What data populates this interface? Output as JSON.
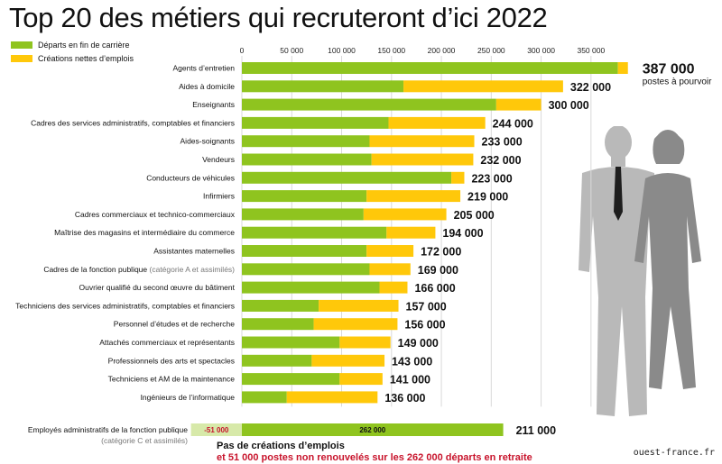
{
  "title": "Top 20 des métiers qui recruteront d’ici 2022",
  "legend": [
    {
      "label": "Départs en fin de carrière",
      "color": "#8fc41f"
    },
    {
      "label": "Créations nettes d’emplois",
      "color": "#ffc80a"
    }
  ],
  "chart_data": {
    "type": "bar",
    "orientation": "horizontal",
    "stacked": true,
    "xlim": [
      0,
      380000
    ],
    "ticks": [
      {
        "value": 0,
        "label": "0"
      },
      {
        "value": 50000,
        "label": "50 000"
      },
      {
        "value": 100000,
        "label": "100 000"
      },
      {
        "value": 150000,
        "label": "150 000"
      },
      {
        "value": 200000,
        "label": "200 000"
      },
      {
        "value": 250000,
        "label": "250 000"
      },
      {
        "value": 300000,
        "label": "300 000"
      },
      {
        "value": 350000,
        "label": "350 000"
      }
    ],
    "grid": true,
    "categories": [
      {
        "label": "Agents d’entretien",
        "departs": 377000,
        "creations": 10000,
        "total": "387 000"
      },
      {
        "label": "Aides à domicile",
        "departs": 162000,
        "creations": 160000,
        "total": "322 000"
      },
      {
        "label": "Enseignants",
        "departs": 255000,
        "creations": 45000,
        "total": "300 000"
      },
      {
        "label": "Cadres des services administratifs, comptables et financiers",
        "departs": 147000,
        "creations": 97000,
        "total": "244 000"
      },
      {
        "label": "Aides-soignants",
        "departs": 128000,
        "creations": 105000,
        "total": "233 000"
      },
      {
        "label": "Vendeurs",
        "departs": 130000,
        "creations": 102000,
        "total": "232 000"
      },
      {
        "label": "Conducteurs de véhicules",
        "departs": 210000,
        "creations": 13000,
        "total": "223 000"
      },
      {
        "label": "Infirmiers",
        "departs": 125000,
        "creations": 94000,
        "total": "219 000"
      },
      {
        "label": "Cadres commerciaux et technico-commerciaux",
        "departs": 122000,
        "creations": 83000,
        "total": "205 000"
      },
      {
        "label": "Maîtrise des magasins et intermédiaire du commerce",
        "departs": 145000,
        "creations": 49000,
        "total": "194 000"
      },
      {
        "label": "Assistantes maternelles",
        "departs": 125000,
        "creations": 47000,
        "total": "172 000"
      },
      {
        "label": "Cadres de la fonction publique",
        "note": "(catégorie A et assimilés)",
        "departs": 128000,
        "creations": 41000,
        "total": "169 000"
      },
      {
        "label": "Ouvrier qualifié du second œuvre du bâtiment",
        "departs": 138000,
        "creations": 28000,
        "total": "166 000"
      },
      {
        "label": "Techniciens des services administratifs, comptables et financiers",
        "departs": 77000,
        "creations": 80000,
        "total": "157 000"
      },
      {
        "label": "Personnel d’études et de recherche",
        "departs": 72000,
        "creations": 84000,
        "total": "156 000"
      },
      {
        "label": "Attachés commerciaux et représentants",
        "departs": 98000,
        "creations": 51000,
        "total": "149 000"
      },
      {
        "label": "Professionnels des arts et spectacles",
        "departs": 70000,
        "creations": 73000,
        "total": "143 000"
      },
      {
        "label": "Techniciens et AM de la maintenance",
        "departs": 98000,
        "creations": 43000,
        "total": "141 000"
      },
      {
        "label": "Ingénieurs de l’informatique",
        "departs": 45000,
        "creations": 91000,
        "total": "136 000"
      }
    ],
    "extra_row": {
      "label": "Employés administratifs de la fonction publique",
      "note": "(catégorie C et assimilés)",
      "negative_value": -51000,
      "negative_label": "-51 000",
      "departs": 262000,
      "departs_label": "262 000",
      "total": "211 000"
    },
    "top_annotation": "postes à pourvoir"
  },
  "footnote": {
    "line1": "Pas de créations d’emplois",
    "line2": "et 51 000 postes non renouvelés sur les 262 000 départs en retraite"
  },
  "source": "ouest-france.fr",
  "colors": {
    "departs": "#8fc41f",
    "creations": "#ffc80a",
    "negative": "#d7e9a9",
    "grid": "#d9d9d9",
    "silhouette_man": "#b7b7b7",
    "silhouette_woman": "#8c8c8c"
  }
}
